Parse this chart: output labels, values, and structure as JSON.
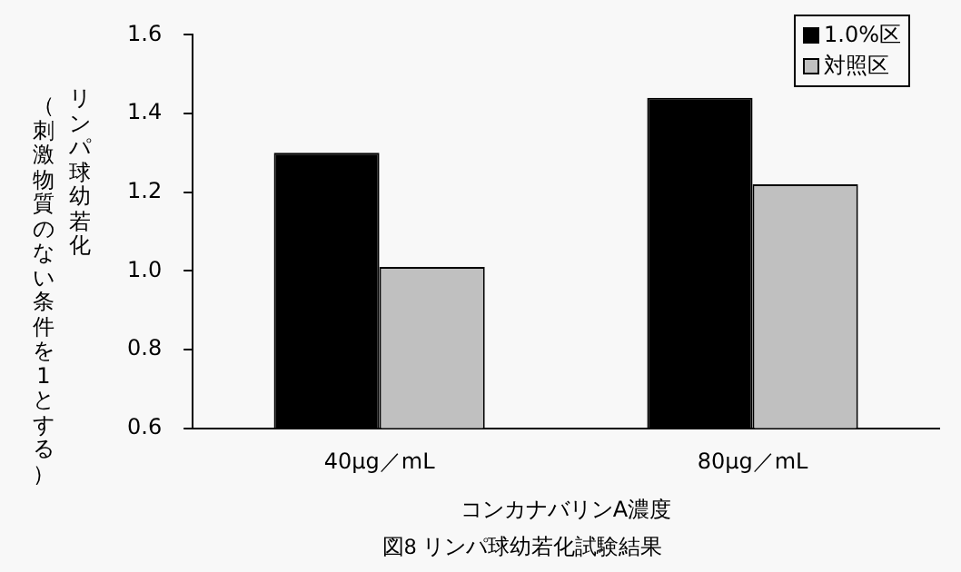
{
  "chart_data": {
    "type": "bar",
    "title": "図8 リンパ球幼若化試験結果",
    "xlabel": "コンカナバリンA濃度",
    "ylabel": "リンパ球幼若化（刺激物質のない条件を1とする）",
    "categories": [
      "40μg／mL",
      "80μg／mL"
    ],
    "series": [
      {
        "name": "1.0%区",
        "color": "#000000",
        "values": [
          1.3,
          1.44
        ]
      },
      {
        "name": "対照区",
        "color": "#c0c0c0",
        "values": [
          1.01,
          1.22
        ]
      }
    ],
    "ylim": [
      0.6,
      1.6
    ],
    "yticks": [
      0.6,
      0.8,
      {
        "value": 1,
        "label": "1.0"
      },
      1.2,
      1.4,
      1.6
    ],
    "grid": false,
    "legend": "top right"
  }
}
